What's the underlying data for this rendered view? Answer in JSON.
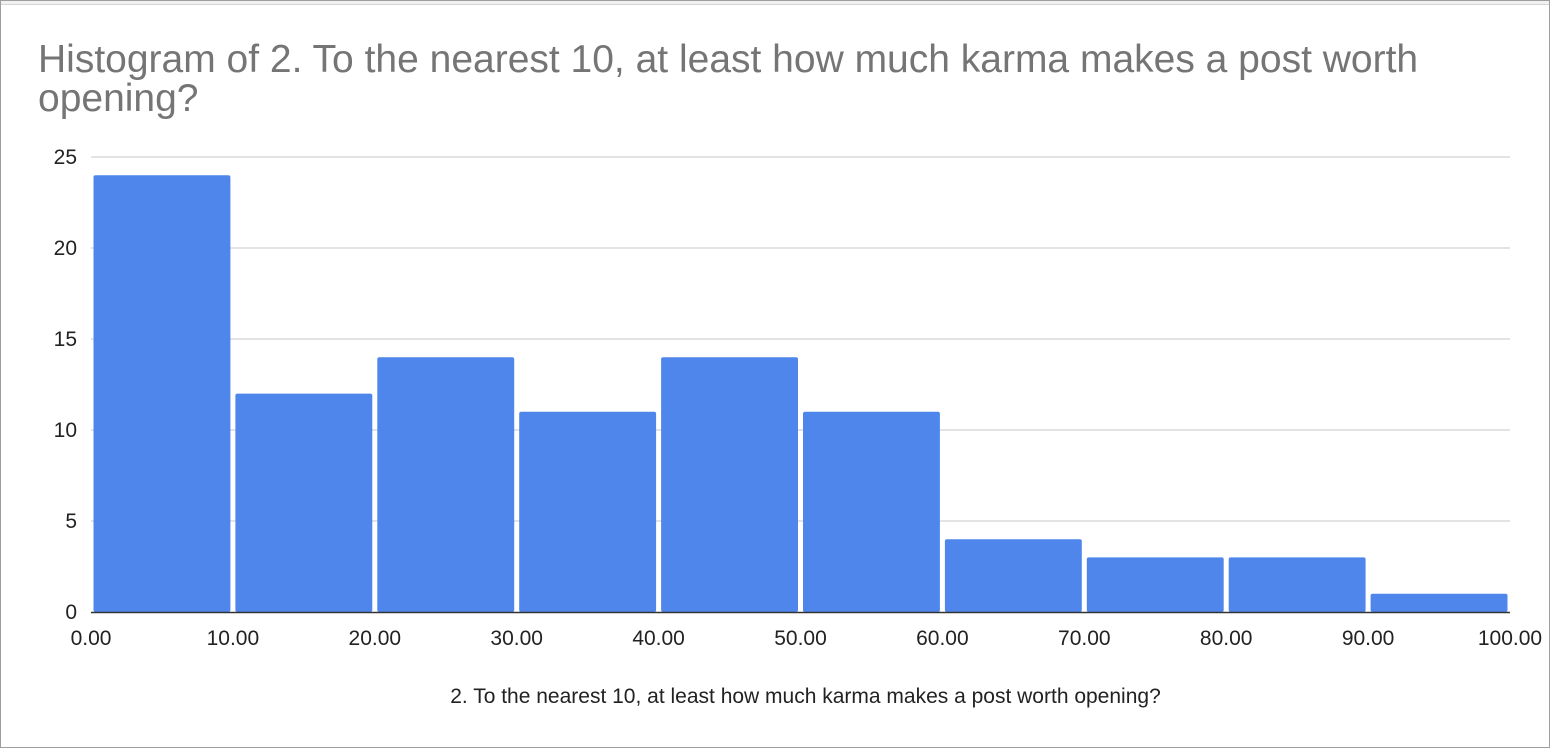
{
  "chart_data": {
    "type": "bar",
    "subtype": "histogram",
    "title": "Histogram of 2. To the nearest 10, at least how much karma makes a post worth opening?",
    "xlabel": "2. To the nearest 10, at least how much karma makes a post worth opening?",
    "ylabel": "",
    "bin_edges": [
      0,
      10,
      20,
      30,
      40,
      50,
      60,
      70,
      80,
      90,
      100
    ],
    "x_tick_labels": [
      "0.00",
      "10.00",
      "20.00",
      "30.00",
      "40.00",
      "50.00",
      "60.00",
      "70.00",
      "80.00",
      "90.00",
      "100.00"
    ],
    "values": [
      24,
      12,
      14,
      11,
      14,
      11,
      4,
      3,
      3,
      1
    ],
    "y_ticks": [
      0,
      5,
      10,
      15,
      20,
      25
    ],
    "ylim": [
      0,
      25
    ],
    "xlim": [
      0,
      100
    ],
    "bar_color": "#4f86ec",
    "grid": true,
    "legend": "none"
  }
}
